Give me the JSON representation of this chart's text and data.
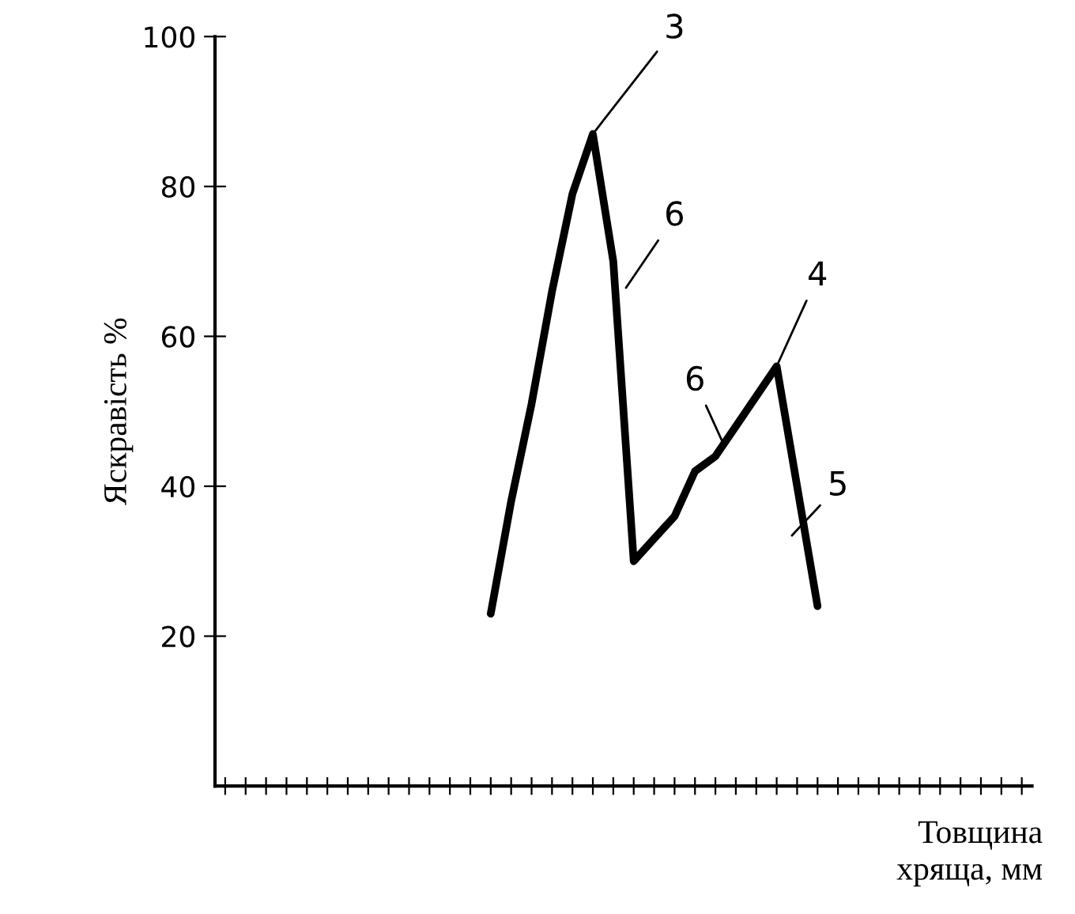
{
  "chart_data": {
    "type": "line",
    "xlabel": "Товщина\nхряща, мм",
    "ylabel": "Яскравість %",
    "categories": [
      null,
      null,
      null,
      null,
      null,
      null,
      null,
      null,
      null,
      null,
      null,
      null,
      null,
      null,
      null,
      null,
      null,
      null,
      null,
      null,
      null,
      null,
      null,
      null,
      null,
      null,
      null,
      null,
      null,
      null,
      null,
      null,
      null,
      null,
      null,
      null,
      null,
      null,
      null,
      null
    ],
    "series": [
      {
        "color": "#000000",
        "values": [
          null,
          null,
          null,
          null,
          null,
          null,
          null,
          null,
          null,
          null,
          null,
          null,
          null,
          23,
          38,
          51,
          66,
          79,
          87,
          70,
          30,
          33,
          36,
          42,
          44,
          48,
          52,
          56,
          40,
          24,
          null,
          null,
          null,
          null,
          null,
          null,
          null,
          null,
          null,
          null
        ]
      }
    ],
    "ylim": [
      0,
      100
    ],
    "yticks": [
      20,
      40,
      60,
      80,
      100
    ],
    "annotations": [
      "3",
      "6",
      "6",
      "4",
      "5"
    ],
    "grid": false,
    "legend": false,
    "marker": "none",
    "line_style": "solid"
  }
}
